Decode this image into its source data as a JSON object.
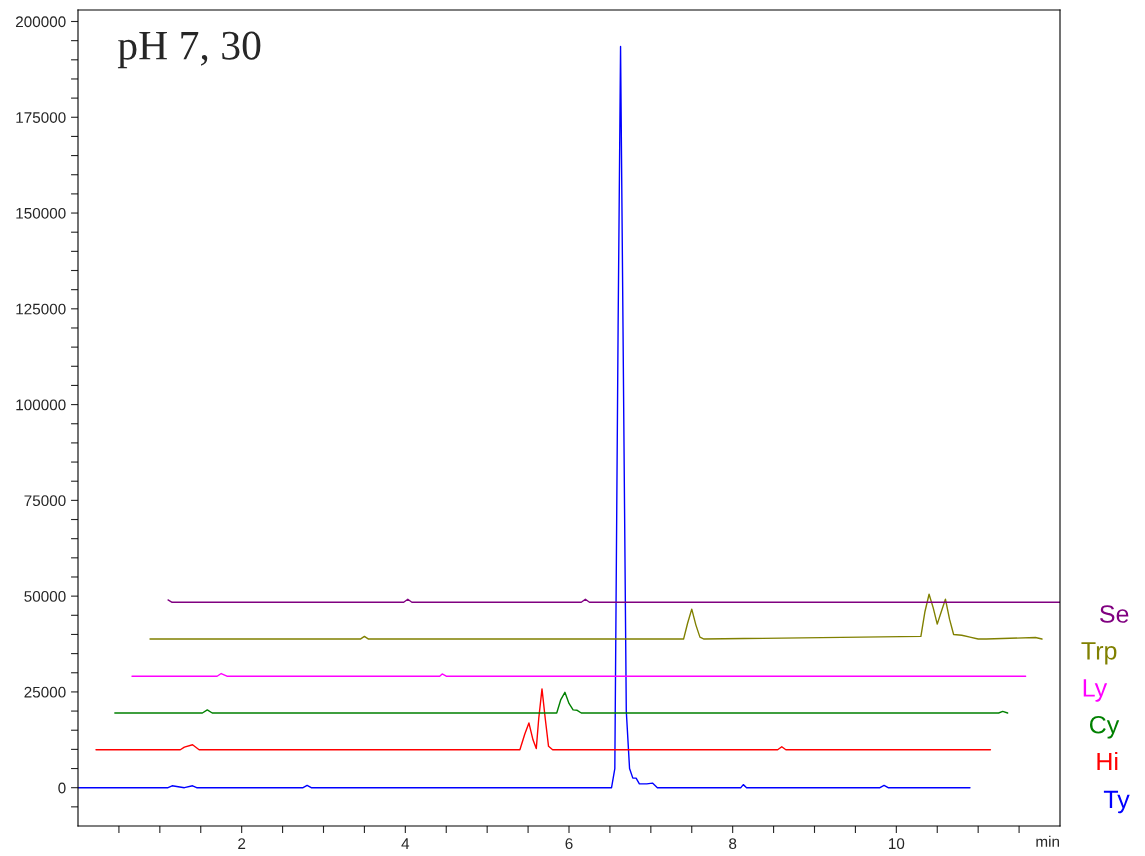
{
  "chart_data": {
    "type": "line",
    "title": "pH 7, 30",
    "xlabel": "min",
    "xlim": [
      0,
      12
    ],
    "ylim": [
      -10000,
      203000
    ],
    "xticks": [
      {
        "value": 0.5,
        "label": null
      },
      {
        "value": 1,
        "label": null
      },
      {
        "value": 1.5,
        "label": null
      },
      2,
      {
        "value": 2.5,
        "label": null
      },
      {
        "value": 3,
        "label": null
      },
      {
        "value": 3.5,
        "label": null
      },
      4,
      {
        "value": 4.5,
        "label": null
      },
      {
        "value": 5,
        "label": null
      },
      {
        "value": 5.5,
        "label": null
      },
      6,
      {
        "value": 6.5,
        "label": null
      },
      {
        "value": 7,
        "label": null
      },
      {
        "value": 7.5,
        "label": null
      },
      8,
      {
        "value": 8.5,
        "label": null
      },
      {
        "value": 9,
        "label": null
      },
      {
        "value": 9.5,
        "label": null
      },
      10,
      {
        "value": 10.5,
        "label": null
      },
      {
        "value": 11,
        "label": null
      },
      {
        "value": 11.5,
        "label": null
      }
    ],
    "yticks": [
      {
        "value": -5000,
        "label": null
      },
      0,
      {
        "value": 5000,
        "label": null
      },
      {
        "value": 10000,
        "label": null
      },
      {
        "value": 15000,
        "label": null
      },
      {
        "value": 20000,
        "label": null
      },
      25000,
      {
        "value": 30000,
        "label": null
      },
      {
        "value": 35000,
        "label": null
      },
      {
        "value": 40000,
        "label": null
      },
      {
        "value": 45000,
        "label": null
      },
      50000,
      {
        "value": 55000,
        "label": null
      },
      {
        "value": 60000,
        "label": null
      },
      {
        "value": 65000,
        "label": null
      },
      {
        "value": 70000,
        "label": null
      },
      75000,
      {
        "value": 80000,
        "label": null
      },
      {
        "value": 85000,
        "label": null
      },
      {
        "value": 90000,
        "label": null
      },
      {
        "value": 95000,
        "label": null
      },
      100000,
      {
        "value": 105000,
        "label": null
      },
      {
        "value": 110000,
        "label": null
      },
      {
        "value": 115000,
        "label": null
      },
      {
        "value": 120000,
        "label": null
      },
      125000,
      {
        "value": 130000,
        "label": null
      },
      {
        "value": 135000,
        "label": null
      },
      {
        "value": 140000,
        "label": null
      },
      {
        "value": 145000,
        "label": null
      },
      150000,
      {
        "value": 155000,
        "label": null
      },
      {
        "value": 160000,
        "label": null
      },
      {
        "value": 165000,
        "label": null
      },
      {
        "value": 170000,
        "label": null
      },
      175000,
      {
        "value": 180000,
        "label": null
      },
      {
        "value": 185000,
        "label": null
      },
      {
        "value": 190000,
        "label": null
      },
      {
        "value": 195000,
        "label": null
      },
      200000
    ],
    "grid": false,
    "legend": false,
    "marker": "none",
    "line_style": "solid",
    "series": [
      {
        "name": "Ty",
        "color": "#0000ff",
        "x": [
          0,
          1.1,
          1.15,
          1.3,
          1.4,
          1.45,
          2.75,
          2.8,
          2.85,
          6.52,
          6.56,
          6.6,
          6.63,
          6.66,
          6.7,
          6.74,
          6.78,
          6.82,
          6.86,
          6.95,
          7.02,
          7.08,
          8.1,
          8.13,
          8.17,
          9.8,
          9.85,
          9.9,
          10.9
        ],
        "values": [
          0,
          0,
          500,
          0,
          500,
          0,
          0,
          600,
          0,
          0,
          5000,
          120000,
          193500,
          120000,
          20000,
          5000,
          2500,
          2500,
          1000,
          1000,
          1200,
          0,
          0,
          800,
          0,
          0,
          600,
          0,
          0
        ]
      },
      {
        "name": "Hi",
        "color": "#ff0000",
        "x": [
          0.22,
          1.25,
          1.3,
          1.4,
          1.48,
          5.4,
          5.46,
          5.51,
          5.56,
          5.6,
          5.63,
          5.67,
          5.71,
          5.75,
          5.8,
          8.55,
          8.6,
          8.65,
          11.15
        ],
        "values": [
          9900,
          9900,
          10600,
          11200,
          9900,
          9900,
          14000,
          16900,
          12500,
          10200,
          18000,
          25800,
          18000,
          10800,
          9900,
          9900,
          10700,
          9900,
          9900
        ]
      },
      {
        "name": "Cy",
        "color": "#008000",
        "x": [
          0.45,
          1.52,
          1.58,
          1.64,
          5.85,
          5.9,
          5.95,
          6.0,
          6.05,
          6.1,
          6.15,
          11.25,
          11.3,
          11.36
        ],
        "values": [
          19500,
          19500,
          20300,
          19500,
          19500,
          23000,
          24900,
          22000,
          20300,
          20200,
          19500,
          19500,
          19900,
          19500
        ]
      },
      {
        "name": "Ly",
        "color": "#ff00ff",
        "x": [
          0.66,
          1.7,
          1.75,
          1.82,
          4.42,
          4.45,
          4.5,
          11.58
        ],
        "values": [
          29100,
          29100,
          29800,
          29100,
          29100,
          29700,
          29100,
          29100
        ]
      },
      {
        "name": "Trp",
        "color": "#808000",
        "x": [
          0.88,
          3.45,
          3.5,
          3.55,
          7.4,
          7.45,
          7.5,
          7.55,
          7.6,
          7.65,
          10.3,
          10.35,
          10.4,
          10.45,
          10.5,
          10.55,
          10.6,
          10.65,
          10.7,
          10.8,
          10.9,
          11.0,
          11.1,
          11.7,
          11.78
        ],
        "values": [
          38800,
          38800,
          39500,
          38800,
          38800,
          43000,
          46600,
          42500,
          39300,
          38800,
          39500,
          46000,
          50500,
          47000,
          42700,
          46000,
          49200,
          44000,
          40000,
          39800,
          39300,
          38800,
          38800,
          39200,
          38800
        ]
      },
      {
        "name": "Se",
        "color": "#800080",
        "x": [
          1.1,
          1.15,
          3.98,
          4.03,
          4.08,
          6.15,
          6.2,
          6.25,
          12
        ],
        "values": [
          49000,
          48400,
          48400,
          49200,
          48400,
          48400,
          49200,
          48400,
          48400
        ]
      }
    ]
  }
}
